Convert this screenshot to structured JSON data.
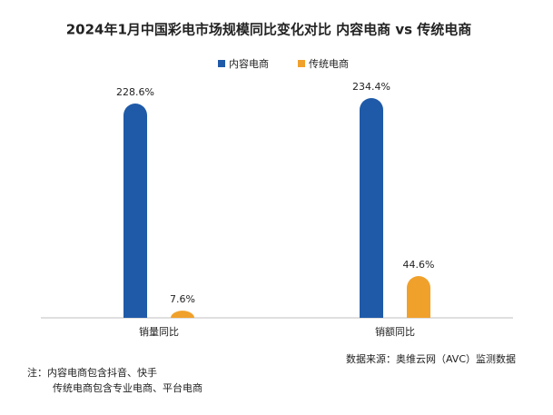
{
  "chart_data": {
    "type": "bar",
    "title": "2024年1月中国彩电市场规模同比变化对比 内容电商 vs 传统电商",
    "categories": [
      "销量同比",
      "销额同比"
    ],
    "series": [
      {
        "name": "内容电商",
        "color": "#1f5aa8",
        "values": [
          228.6,
          234.4
        ],
        "value_labels": [
          "228.6%",
          "234.4%"
        ]
      },
      {
        "name": "传统电商",
        "color": "#f0a12b",
        "values": [
          7.6,
          44.6
        ],
        "value_labels": [
          "7.6%",
          "44.6%"
        ]
      }
    ],
    "legend": "top",
    "source": "数据来源：奥维云网（AVC）监测数据",
    "notes": [
      "注：内容电商包含抖音、快手",
      "传统电商包含专业电商、平台电商"
    ]
  }
}
